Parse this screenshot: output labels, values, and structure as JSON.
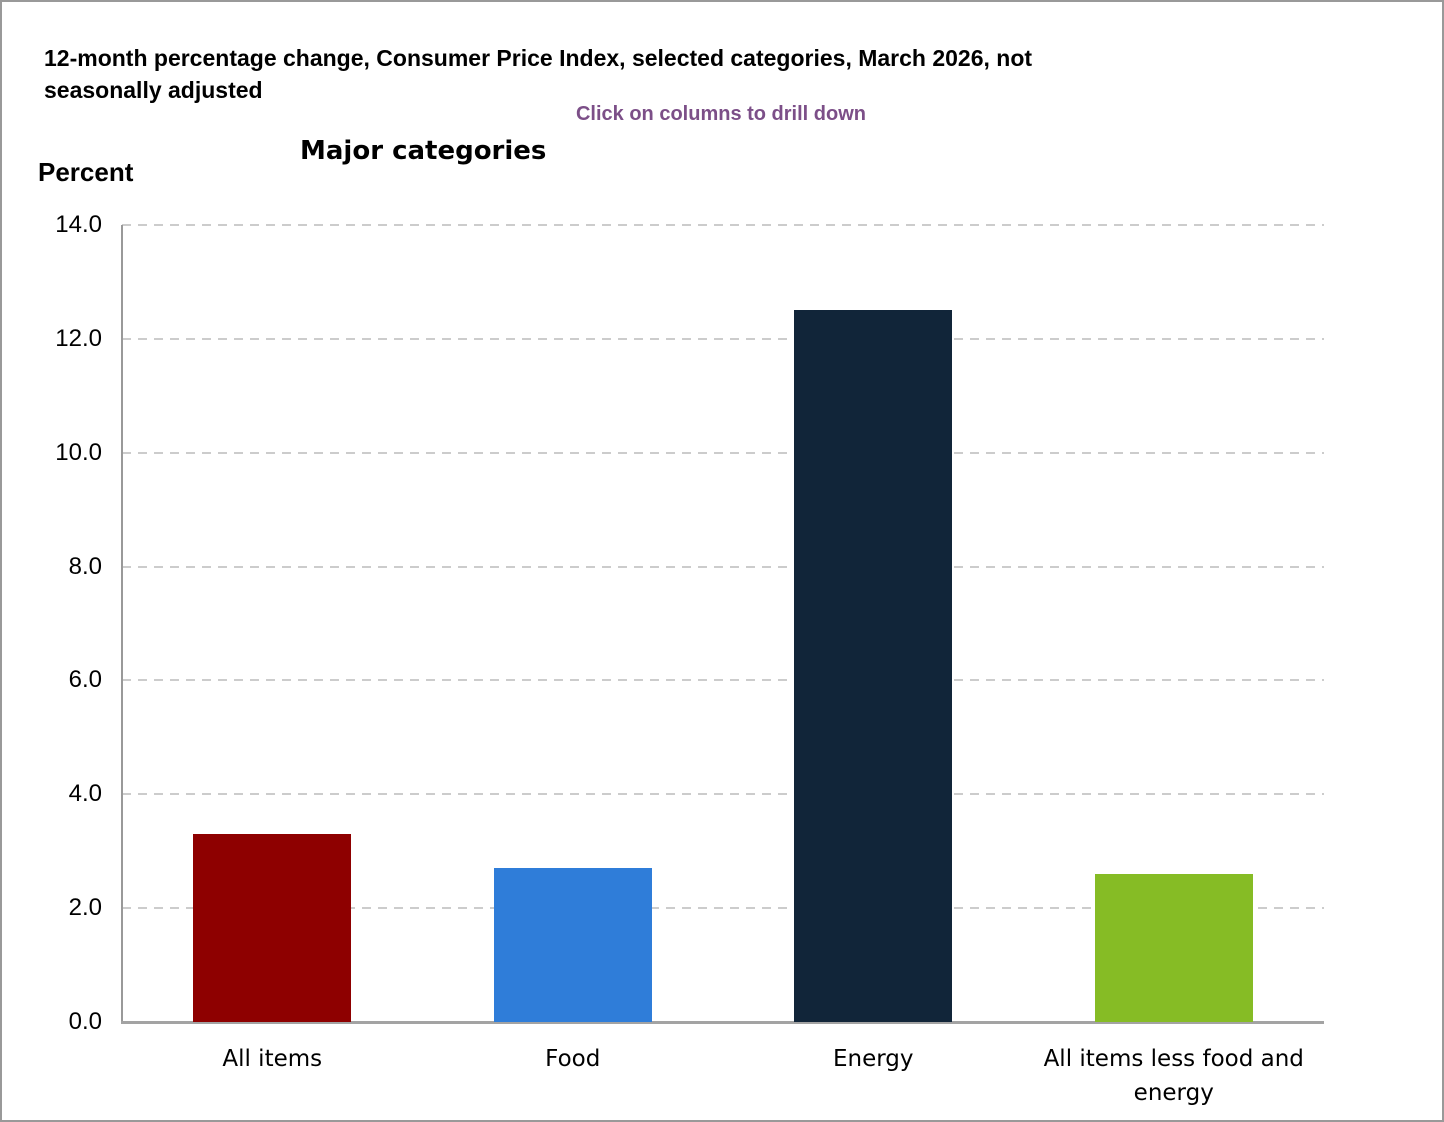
{
  "header": {
    "title_lines": [
      "12-month percentage change, Consumer Price Index, selected categories, March 2026, not",
      "seasonally adjusted"
    ],
    "drilldown_hint": "Click on columns to drill down",
    "hint_color": "#7C4F88"
  },
  "chart_data": {
    "type": "bar",
    "title": "Major categories",
    "ylabel": "Percent",
    "xlabel": "",
    "categories": [
      "All items",
      "Food",
      "Energy",
      "All items less food and energy"
    ],
    "values": [
      3.3,
      2.7,
      12.5,
      2.6
    ],
    "bar_colors": [
      "#8E0000",
      "#2F7DD9",
      "#112539",
      "#86BC25"
    ],
    "ylim": [
      0,
      14
    ],
    "ytick_step": 2,
    "ytick_labels": [
      "0.0",
      "2.0",
      "4.0",
      "6.0",
      "8.0",
      "10.0",
      "12.0",
      "14.0"
    ],
    "grid": "horizontal-dashed",
    "legend": "none",
    "interaction_note": "columns are clickable to drill down"
  }
}
